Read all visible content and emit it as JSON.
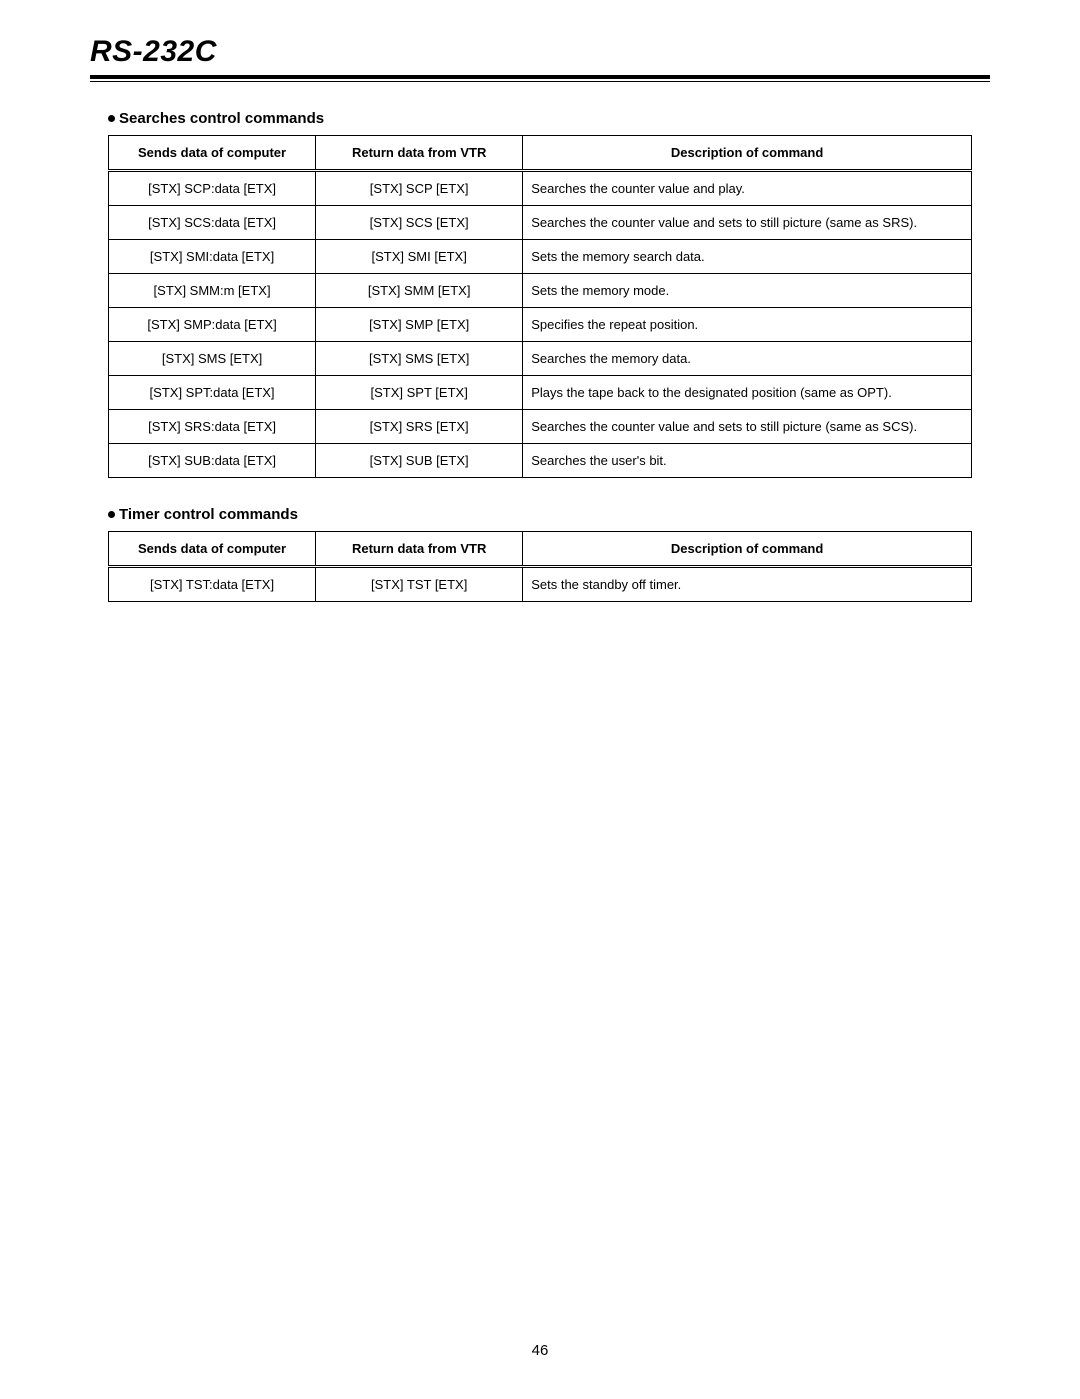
{
  "page_title": "RS-232C",
  "page_number": "46",
  "sections": [
    {
      "heading": "Searches control commands",
      "columns": [
        "Sends data of computer",
        "Return data from VTR",
        "Description of command"
      ],
      "rows": [
        [
          "[STX] SCP:data [ETX]",
          "[STX] SCP [ETX]",
          "Searches the counter value and play."
        ],
        [
          "[STX] SCS:data [ETX]",
          "[STX] SCS [ETX]",
          "Searches the counter value and sets to still picture (same as SRS)."
        ],
        [
          "[STX] SMI:data [ETX]",
          "[STX] SMI [ETX]",
          "Sets the memory search data."
        ],
        [
          "[STX] SMM:m [ETX]",
          "[STX] SMM [ETX]",
          "Sets the memory mode."
        ],
        [
          "[STX] SMP:data [ETX]",
          "[STX] SMP [ETX]",
          "Specifies the repeat position."
        ],
        [
          "[STX] SMS [ETX]",
          "[STX] SMS [ETX]",
          "Searches the memory data."
        ],
        [
          "[STX] SPT:data [ETX]",
          "[STX] SPT [ETX]",
          "Plays the tape back to the designated position (same as OPT)."
        ],
        [
          "[STX] SRS:data [ETX]",
          "[STX] SRS [ETX]",
          "Searches the counter value and sets to still picture (same as SCS)."
        ],
        [
          "[STX] SUB:data [ETX]",
          "[STX] SUB [ETX]",
          "Searches the user's bit."
        ]
      ]
    },
    {
      "heading": "Timer control commands",
      "columns": [
        "Sends data of computer",
        "Return data from VTR",
        "Description of command"
      ],
      "rows": [
        [
          "[STX] TST:data [ETX]",
          "[STX] TST [ETX]",
          "Sets the standby off timer."
        ]
      ]
    }
  ]
}
